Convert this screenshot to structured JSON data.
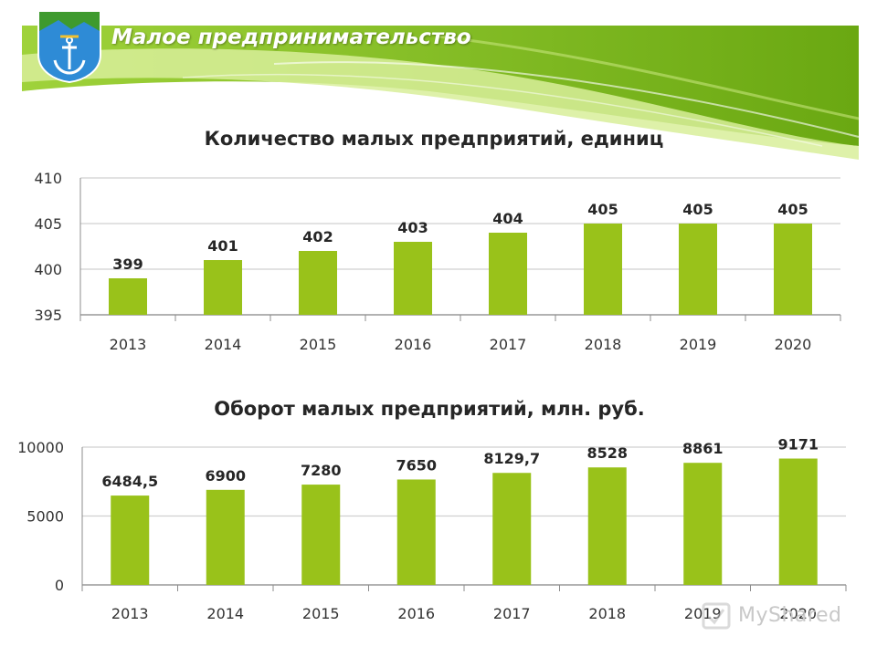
{
  "slide": {
    "title": "Малое предпринимательство"
  },
  "colors": {
    "bar": "#99c21a",
    "banner_light": "#d8ef9a",
    "banner_dark": "#77b61a",
    "grid": "#d0d0d0"
  },
  "chart_data": [
    {
      "type": "bar",
      "title": "Количество малых предприятий, единиц",
      "categories": [
        "2013",
        "2014",
        "2015",
        "2016",
        "2017",
        "2018",
        "2019",
        "2020"
      ],
      "values": [
        399,
        401,
        402,
        403,
        404,
        405,
        405,
        405
      ],
      "value_labels": [
        "399",
        "401",
        "402",
        "403",
        "404",
        "405",
        "405",
        "405"
      ],
      "yticks": [
        "395",
        "400",
        "405",
        "410"
      ],
      "ylim": [
        395,
        410
      ],
      "grid": true,
      "legend": "none"
    },
    {
      "type": "bar",
      "title": "Оборот малых предприятий, млн. руб.",
      "categories": [
        "2013",
        "2014",
        "2015",
        "2016",
        "2017",
        "2018",
        "2019",
        "2020"
      ],
      "values": [
        6484.5,
        6900,
        7280,
        7650,
        8129.7,
        8528,
        8861,
        9171
      ],
      "value_labels": [
        "6484,5",
        "6900",
        "7280",
        "7650",
        "8129,7",
        "8528",
        "8861",
        "9171"
      ],
      "yticks": [
        "0",
        "5000",
        "10000"
      ],
      "ylim": [
        0,
        10000
      ],
      "grid": true,
      "legend": "none"
    }
  ],
  "watermark": {
    "text": "MyShared"
  }
}
